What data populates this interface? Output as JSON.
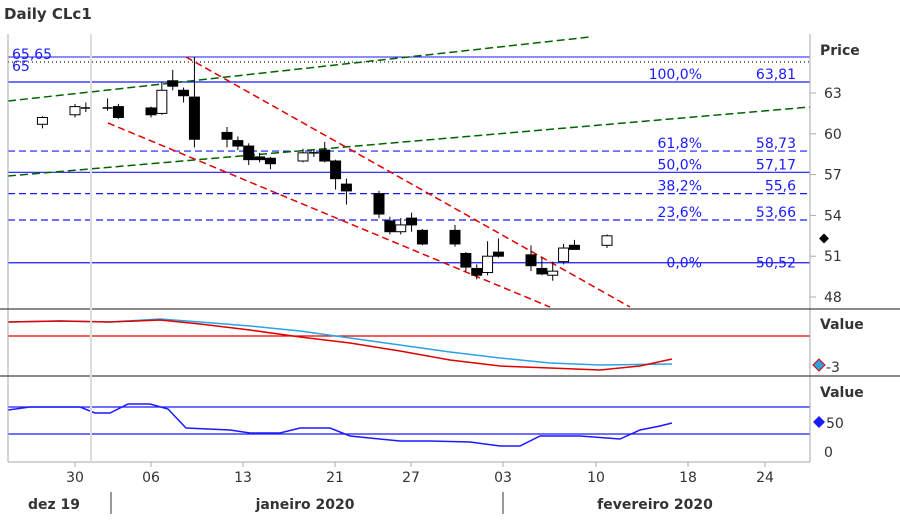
{
  "chart_data": {
    "type": "candlestick",
    "title": "Daily CLc1",
    "price_axis_label": "Price",
    "indicator_axis_label": "Value",
    "y_ticks": [
      "63",
      "60",
      "57",
      "54",
      "51",
      "48"
    ],
    "x_ticks": [
      "30",
      "06",
      "13",
      "21",
      "27",
      "03",
      "10",
      "18",
      "24"
    ],
    "months": [
      "dez 19",
      "janeiro 2020",
      "fevereiro 2020"
    ],
    "high_marker": {
      "label": "65,65",
      "value": 65.65
    },
    "partial_label": "65",
    "fibonacci": [
      {
        "label": "100,0%",
        "value": 63.81,
        "value_label": "63,81"
      },
      {
        "label": "61,8%",
        "value": 58.73,
        "value_label": "58,73"
      },
      {
        "label": "50,0%",
        "value": 57.17,
        "value_label": "57,17"
      },
      {
        "label": "38,2%",
        "value": 55.6,
        "value_label": "55,6"
      },
      {
        "label": "23,6%",
        "value": 53.66,
        "value_label": "53,66"
      },
      {
        "label": "0,0%",
        "value": 50.52,
        "value_label": "50,52"
      }
    ],
    "candles": [
      {
        "date": "2019-12-27",
        "o": 60.7,
        "h": 61.3,
        "l": 60.4,
        "c": 61.2
      },
      {
        "date": "2019-12-30",
        "o": 61.4,
        "h": 62.2,
        "l": 61.2,
        "c": 62.0
      },
      {
        "date": "2019-12-31",
        "o": 61.9,
        "h": 62.3,
        "l": 61.6,
        "c": 61.9
      },
      {
        "date": "2020-01-02",
        "o": 61.9,
        "h": 62.6,
        "l": 61.7,
        "c": 61.9
      },
      {
        "date": "2020-01-03",
        "o": 62.0,
        "h": 62.2,
        "l": 61.1,
        "c": 61.2
      },
      {
        "date": "2020-01-06",
        "o": 61.9,
        "h": 62.0,
        "l": 61.2,
        "c": 61.4
      },
      {
        "date": "2020-01-07",
        "o": 61.5,
        "h": 63.8,
        "l": 61.4,
        "c": 63.2
      },
      {
        "date": "2020-01-08",
        "o": 63.9,
        "h": 64.7,
        "l": 63.2,
        "c": 63.5
      },
      {
        "date": "2020-01-09",
        "o": 63.2,
        "h": 63.4,
        "l": 62.3,
        "c": 62.8
      },
      {
        "date": "2020-01-10",
        "o": 62.7,
        "h": 65.65,
        "l": 59.0,
        "c": 59.6
      },
      {
        "date": "2020-01-13",
        "o": 60.1,
        "h": 60.5,
        "l": 59.0,
        "c": 59.6
      },
      {
        "date": "2020-01-14",
        "o": 59.5,
        "h": 59.8,
        "l": 58.8,
        "c": 59.1
      },
      {
        "date": "2020-01-15",
        "o": 59.1,
        "h": 59.3,
        "l": 57.7,
        "c": 58.1
      },
      {
        "date": "2020-01-16",
        "o": 58.3,
        "h": 58.6,
        "l": 57.9,
        "c": 58.1
      },
      {
        "date": "2020-01-17",
        "o": 58.2,
        "h": 58.3,
        "l": 57.4,
        "c": 57.8
      },
      {
        "date": "2020-01-20",
        "o": 58.0,
        "h": 58.9,
        "l": 57.9,
        "c": 58.6
      },
      {
        "date": "2020-01-21",
        "o": 58.6,
        "h": 58.8,
        "l": 58.3,
        "c": 58.5
      },
      {
        "date": "2020-01-22",
        "o": 58.8,
        "h": 59.4,
        "l": 57.9,
        "c": 58.0
      },
      {
        "date": "2020-01-23",
        "o": 58.0,
        "h": 58.1,
        "l": 55.9,
        "c": 56.7
      },
      {
        "date": "2020-01-24",
        "o": 56.3,
        "h": 56.7,
        "l": 54.8,
        "c": 55.8
      },
      {
        "date": "2020-01-27",
        "o": 55.6,
        "h": 55.8,
        "l": 53.8,
        "c": 54.1
      },
      {
        "date": "2020-01-28",
        "o": 53.6,
        "h": 53.9,
        "l": 52.6,
        "c": 52.8
      },
      {
        "date": "2020-01-29",
        "o": 52.8,
        "h": 53.8,
        "l": 52.6,
        "c": 53.3
      },
      {
        "date": "2020-01-30",
        "o": 53.8,
        "h": 54.2,
        "l": 52.8,
        "c": 53.3
      },
      {
        "date": "2020-01-31",
        "o": 52.9,
        "h": 53.0,
        "l": 51.8,
        "c": 51.9
      },
      {
        "date": "2020-02-03",
        "o": 52.9,
        "h": 53.3,
        "l": 51.7,
        "c": 51.9
      },
      {
        "date": "2020-02-04",
        "o": 51.2,
        "h": 51.3,
        "l": 49.9,
        "c": 50.2
      },
      {
        "date": "2020-02-05",
        "o": 50.1,
        "h": 50.4,
        "l": 49.3,
        "c": 49.6
      },
      {
        "date": "2020-02-06",
        "o": 49.8,
        "h": 52.1,
        "l": 49.6,
        "c": 51.0
      },
      {
        "date": "2020-02-07",
        "o": 51.3,
        "h": 52.3,
        "l": 50.9,
        "c": 51.0
      },
      {
        "date": "2020-02-10",
        "o": 51.1,
        "h": 51.8,
        "l": 49.9,
        "c": 50.3
      },
      {
        "date": "2020-02-11",
        "o": 50.1,
        "h": 50.9,
        "l": 49.6,
        "c": 49.7
      },
      {
        "date": "2020-02-12",
        "o": 49.6,
        "h": 50.6,
        "l": 49.2,
        "c": 49.9
      },
      {
        "date": "2020-02-13",
        "o": 50.6,
        "h": 51.9,
        "l": 50.4,
        "c": 51.6
      },
      {
        "date": "2020-02-14",
        "o": 51.8,
        "h": 52.2,
        "l": 51.5,
        "c": 51.5
      },
      {
        "date": "2020-02-17",
        "o": 51.8,
        "h": 52.6,
        "l": 51.6,
        "c": 52.5
      }
    ],
    "panel1_markers": [
      "-3"
    ],
    "panel2_ticks": [
      "50",
      "0"
    ],
    "colors": {
      "fib_line": "#1a1aff",
      "channel": "#e00000",
      "trend": "#006400",
      "macd": "#e00000",
      "signal": "#29a3e6",
      "rsi": "#1a1aff",
      "frame": "#aaaaaa"
    }
  }
}
